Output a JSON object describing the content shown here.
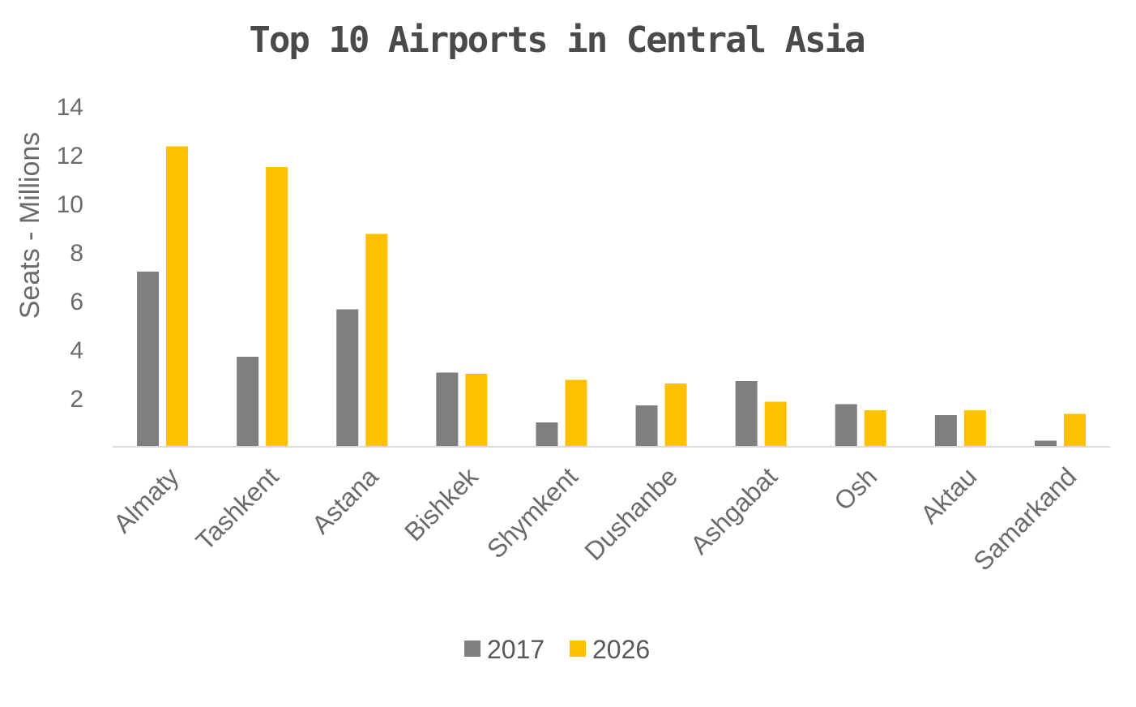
{
  "chart_data": {
    "type": "bar",
    "title": "Top 10 Airports in Central Asia",
    "xlabel": "",
    "ylabel": "Seats - Millions",
    "ylim": [
      0,
      14
    ],
    "yticks": [
      2,
      4,
      6,
      8,
      10,
      12,
      14
    ],
    "grid": false,
    "legend_position": "bottom",
    "categories": [
      "Almaty",
      "Tashkent",
      "Astana",
      "Bishkek",
      "Shymkent",
      "Dushanbe",
      "Ashgabat",
      "Osh",
      "Aktau",
      "Samarkand"
    ],
    "series": [
      {
        "name": "2017",
        "color": "#7f7f7f",
        "values": [
          7.2,
          3.7,
          5.65,
          3.05,
          1.0,
          1.7,
          2.7,
          1.75,
          1.3,
          0.25
        ]
      },
      {
        "name": "2026",
        "color": "#ffc000",
        "values": [
          12.35,
          11.5,
          8.75,
          3.0,
          2.75,
          2.6,
          1.85,
          1.5,
          1.5,
          1.35
        ]
      }
    ]
  }
}
